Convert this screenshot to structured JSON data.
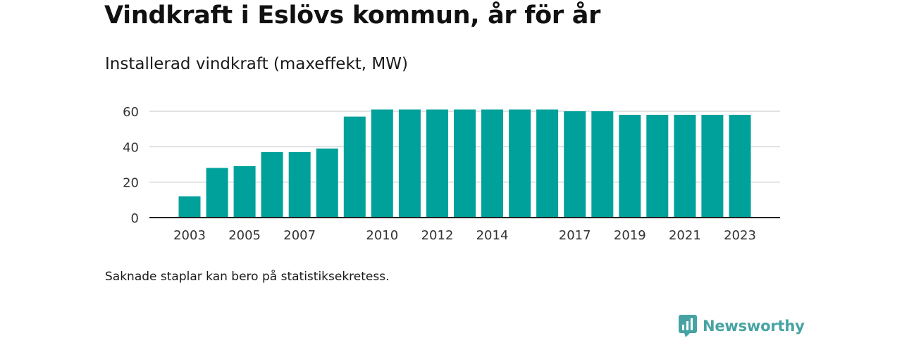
{
  "title": "Vindkraft i Eslövs kommun, år för år",
  "subtitle": "Installerad vindkraft (maxeffekt, MW)",
  "note": "Saknade staplar kan bero på statistiksekretess.",
  "brand": {
    "name": "Newsworthy",
    "icon": "newsworthy-logo-icon",
    "color": "#47a3a3"
  },
  "chart_data": {
    "type": "bar",
    "title": "",
    "xlabel": "",
    "ylabel": "",
    "ylim": [
      0,
      65
    ],
    "yticks": [
      0,
      20,
      40,
      60
    ],
    "grid": true,
    "bar_color": "#00a19a",
    "x_tick_labels": [
      "2003",
      "2005",
      "2007",
      "2010",
      "2012",
      "2014",
      "2017",
      "2019",
      "2021",
      "2023"
    ],
    "categories": [
      "2003",
      "2004",
      "2005",
      "2006",
      "2007",
      "2008",
      "2009",
      "2010",
      "2011",
      "2012",
      "2013",
      "2014",
      "2015",
      "2016",
      "2017",
      "2018",
      "2019",
      "2020",
      "2021",
      "2022",
      "2023"
    ],
    "values": [
      12,
      28,
      29,
      37,
      37,
      39,
      57,
      61,
      61,
      61,
      61,
      61,
      61,
      61,
      60,
      60,
      58,
      58,
      58,
      58,
      58
    ]
  }
}
